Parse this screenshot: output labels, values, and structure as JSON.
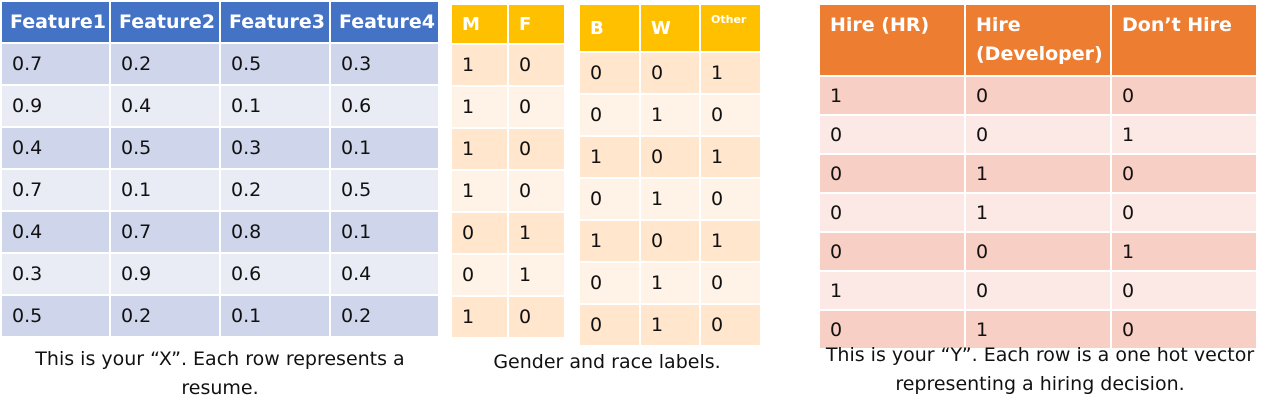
{
  "table_x": {
    "headers": [
      "Feature1",
      "Feature2",
      "Feature3",
      "Feature4"
    ],
    "rows": [
      [
        "0.7",
        "0.2",
        "0.5",
        "0.3"
      ],
      [
        "0.9",
        "0.4",
        "0.1",
        "0.6"
      ],
      [
        "0.4",
        "0.5",
        "0.3",
        "0.1"
      ],
      [
        "0.7",
        "0.1",
        "0.2",
        "0.5"
      ],
      [
        "0.4",
        "0.7",
        "0.8",
        "0.1"
      ],
      [
        "0.3",
        "0.9",
        "0.6",
        "0.4"
      ],
      [
        "0.5",
        "0.2",
        "0.1",
        "0.2"
      ]
    ],
    "caption": "This is your “X”. Each row represents a resume.",
    "header_color": "#4472c4"
  },
  "table_gender": {
    "headers": [
      "M",
      "F"
    ],
    "rows": [
      [
        "1",
        "0"
      ],
      [
        "1",
        "0"
      ],
      [
        "1",
        "0"
      ],
      [
        "1",
        "0"
      ],
      [
        "0",
        "1"
      ],
      [
        "0",
        "1"
      ],
      [
        "1",
        "0"
      ]
    ],
    "header_color": "#ffc000"
  },
  "table_race": {
    "headers": [
      "B",
      "W",
      "Other"
    ],
    "rows": [
      [
        "0",
        "0",
        "1"
      ],
      [
        "0",
        "1",
        "0"
      ],
      [
        "1",
        "0",
        "1"
      ],
      [
        "0",
        "1",
        "0"
      ],
      [
        "1",
        "0",
        "1"
      ],
      [
        "0",
        "1",
        "0"
      ],
      [
        "0",
        "1",
        "0"
      ]
    ],
    "header_color": "#ffc000"
  },
  "labels_caption": "Gender and race labels.",
  "table_y": {
    "headers": [
      "Hire (HR)",
      "Hire (Developer)",
      "Don’t Hire"
    ],
    "rows": [
      [
        "1",
        "0",
        "0"
      ],
      [
        "0",
        "0",
        "1"
      ],
      [
        "0",
        "1",
        "0"
      ],
      [
        "0",
        "1",
        "0"
      ],
      [
        "0",
        "0",
        "1"
      ],
      [
        "1",
        "0",
        "0"
      ],
      [
        "0",
        "1",
        "0"
      ]
    ],
    "caption": "This is your “Y”. Each row is a one hot vector representing a hiring decision.",
    "header_color": "#ed7d31"
  }
}
